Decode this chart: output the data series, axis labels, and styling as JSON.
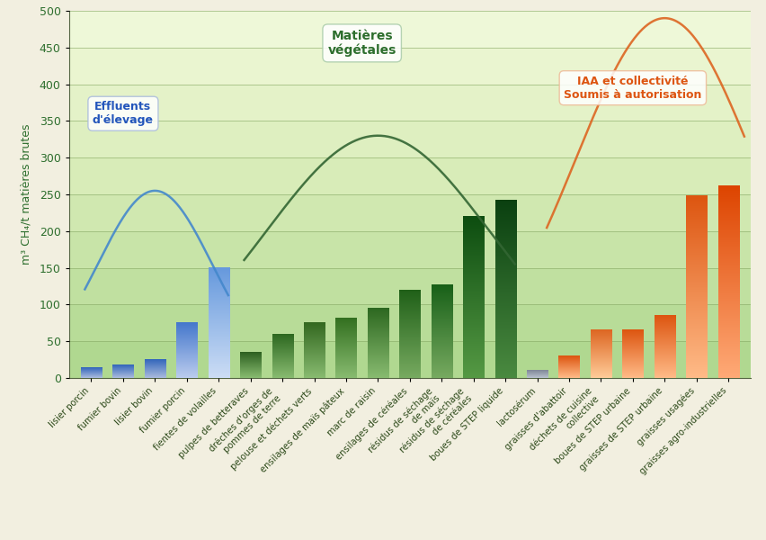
{
  "categories": [
    "lisier porcin",
    "fumier bovin",
    "lisier bovin",
    "fumier porcin",
    "fientes de volailles",
    "pulpes de betteraves",
    "drêches d'orges de\npommes de terre",
    "pelouse et\ndéchets verts",
    "ensilages de\nmaïs pâteux",
    "marc de raisin",
    "ensilages de céréales",
    "résidus de séchage\nde maïs",
    "résidus de séchage\nde céréales",
    "boues de STEP liquide",
    "lactosérum",
    "graisses d'abattoir",
    "déchets de cuisine\ncollective",
    "boues de STEP urbaine",
    "graisses de STEP urbaine",
    "graisses usagées",
    "graisses agro-industrielles"
  ],
  "values": [
    14,
    18,
    25,
    75,
    150,
    35,
    60,
    75,
    82,
    95,
    120,
    127,
    220,
    242,
    10,
    30,
    65,
    65,
    85,
    248,
    262
  ],
  "bar_colors_top": [
    "#3366bb",
    "#3366bb",
    "#3366bb",
    "#4477cc",
    "#6699dd",
    "#2d6020",
    "#2d6820",
    "#336820",
    "#337020",
    "#2d6820",
    "#206018",
    "#186018",
    "#0d4d10",
    "#0a4010",
    "#808898",
    "#dd5510",
    "#dd6622",
    "#dd5510",
    "#dd5510",
    "#dd5510",
    "#dd4400"
  ],
  "bar_colors_bottom": [
    "#aabbdd",
    "#aabbdd",
    "#aabbdd",
    "#bbccee",
    "#ccddf5",
    "#88bb70",
    "#88bb70",
    "#88bb70",
    "#88bb70",
    "#88bb70",
    "#77aa60",
    "#77aa60",
    "#559944",
    "#4a8a40",
    "#b8c0cc",
    "#ffbb88",
    "#ffcc99",
    "#ffbb88",
    "#ffbb88",
    "#ffbb88",
    "#ffaa77"
  ],
  "effluents_arc_color": "#4488cc",
  "vegetal_arc_color": "#336633",
  "iaa_arc_color": "#dd6622",
  "bg_gradient_colors": [
    "#daefc0",
    "#c8e5a8",
    "#b8dc90",
    "#a8d278",
    "#98c860"
  ],
  "ylabel": "m³ CH₄/t matières brutes",
  "ylim": [
    0,
    500
  ],
  "yticks": [
    0,
    50,
    100,
    150,
    200,
    250,
    300,
    350,
    400,
    450,
    500
  ],
  "label_effluents": "Effluents\nd'élevage",
  "label_vegetal": "Matières\nvégétales",
  "label_iaa": "IAA et collectivité\nSoumis à autorisation",
  "label_effluents_color": "#2255bb",
  "label_vegetal_color": "#2d6e2d",
  "label_iaa_color": "#dd5511",
  "bg_outer": "#f2efe0",
  "grid_color": "#88aa66",
  "axis_color": "#556644"
}
